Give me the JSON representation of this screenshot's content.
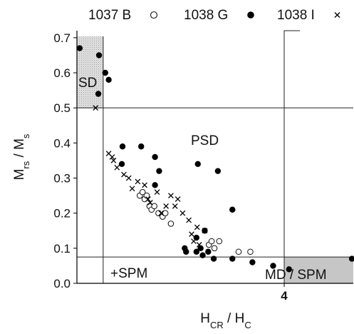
{
  "chart_data": {
    "type": "scatter",
    "xlabel": "H_CR / H_C",
    "ylabel": "M_rs / M_s",
    "xlim": [
      1.0,
      5.0
    ],
    "ylim": [
      0.0,
      0.72
    ],
    "x_tick_labels": [
      "4"
    ],
    "x_ticks": [
      4
    ],
    "y_ticks": [
      "0.0",
      "0.1",
      "0.2",
      "0.3",
      "0.4",
      "0.5",
      "0.6",
      "0.7"
    ],
    "y_tick_values": [
      0.0,
      0.1,
      0.2,
      0.3,
      0.4,
      0.5,
      0.6,
      0.7
    ],
    "legend_position": "top",
    "series": [
      {
        "name": "1037 B",
        "marker": "open-circle",
        "points": [
          [
            1.91,
            0.25
          ],
          [
            1.95,
            0.26
          ],
          [
            1.98,
            0.24
          ],
          [
            2.01,
            0.25
          ],
          [
            2.05,
            0.22
          ],
          [
            2.08,
            0.21
          ],
          [
            2.12,
            0.22
          ],
          [
            2.18,
            0.2
          ],
          [
            2.24,
            0.19
          ],
          [
            2.28,
            0.2
          ],
          [
            2.36,
            0.17
          ],
          [
            2.91,
            0.11
          ],
          [
            2.95,
            0.12
          ],
          [
            2.99,
            0.1
          ],
          [
            3.06,
            0.12
          ],
          [
            3.34,
            0.09
          ],
          [
            3.51,
            0.09
          ]
        ]
      },
      {
        "name": "1038 G",
        "marker": "filled-circle",
        "points": [
          [
            1.04,
            0.67
          ],
          [
            1.32,
            0.65
          ],
          [
            1.41,
            0.6
          ],
          [
            1.46,
            0.58
          ],
          [
            1.31,
            0.54
          ],
          [
            1.66,
            0.39
          ],
          [
            1.65,
            0.34
          ],
          [
            1.93,
            0.39
          ],
          [
            2.13,
            0.36
          ],
          [
            2.19,
            0.32
          ],
          [
            2.13,
            0.28
          ],
          [
            2.75,
            0.34
          ],
          [
            3.04,
            0.32
          ],
          [
            3.25,
            0.21
          ],
          [
            2.85,
            0.15
          ],
          [
            2.73,
            0.13
          ],
          [
            2.56,
            0.1
          ],
          [
            2.58,
            0.09
          ],
          [
            2.73,
            0.09
          ],
          [
            2.79,
            0.1
          ],
          [
            2.82,
            0.08
          ],
          [
            2.9,
            0.09
          ],
          [
            2.98,
            0.07
          ],
          [
            3.25,
            0.07
          ],
          [
            3.54,
            0.06
          ],
          [
            3.84,
            0.05
          ],
          [
            4.07,
            0.04
          ],
          [
            4.98,
            0.07
          ]
        ]
      },
      {
        "name": "1038 I",
        "marker": "cross",
        "points": [
          [
            1.27,
            0.5
          ],
          [
            1.46,
            0.37
          ],
          [
            1.51,
            0.36
          ],
          [
            1.53,
            0.35
          ],
          [
            1.58,
            0.33
          ],
          [
            1.68,
            0.31
          ],
          [
            1.75,
            0.3
          ],
          [
            1.8,
            0.27
          ],
          [
            1.88,
            0.29
          ],
          [
            1.98,
            0.28
          ],
          [
            2.03,
            0.24
          ],
          [
            2.06,
            0.23
          ],
          [
            2.16,
            0.26
          ],
          [
            2.22,
            0.2
          ],
          [
            2.29,
            0.22
          ],
          [
            2.36,
            0.25
          ],
          [
            2.46,
            0.24
          ],
          [
            2.42,
            0.22
          ],
          [
            2.53,
            0.2
          ],
          [
            2.62,
            0.18
          ],
          [
            2.74,
            0.16
          ],
          [
            2.85,
            0.15
          ],
          [
            2.66,
            0.14
          ],
          [
            2.69,
            0.12
          ],
          [
            2.77,
            0.11
          ]
        ]
      }
    ],
    "region_labels": [
      "SD",
      "PSD",
      "+SPM",
      "MD / SPM"
    ],
    "reference_lines": {
      "horizontal": [
        0.5,
        0.075
      ],
      "vertical": [
        1.38,
        4.0
      ]
    },
    "shaded_regions": [
      {
        "name": "SD",
        "x": [
          1.0,
          1.38
        ],
        "y": [
          0.5,
          0.72
        ]
      },
      {
        "name": "MD / SPM",
        "x": [
          4.0,
          5.0
        ],
        "y": [
          0.0,
          0.075
        ]
      }
    ]
  }
}
